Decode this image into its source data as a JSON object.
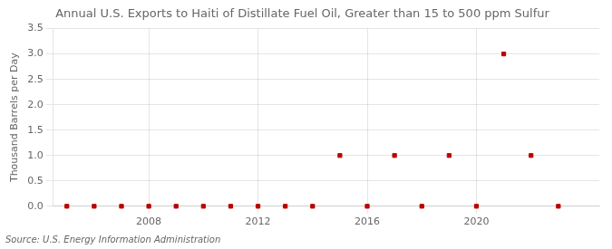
{
  "chart_data": {
    "type": "scatter",
    "title": "Annual U.S. Exports to Haiti of Distillate Fuel Oil, Greater than 15 to 500 ppm Sulfur",
    "ylabel": "Thousand Barrels per Day",
    "annotations": [
      "Source: U.S. Energy Information Administration"
    ],
    "x": [
      2005,
      2006,
      2007,
      2008,
      2009,
      2010,
      2011,
      2012,
      2013,
      2014,
      2015,
      2016,
      2017,
      2018,
      2019,
      2020,
      2021,
      2022,
      2023
    ],
    "values": [
      0.0,
      0.0,
      0.0,
      0.0,
      0.0,
      0.0,
      0.0,
      0.0,
      0.0,
      0.0,
      1.0,
      0.0,
      1.0,
      0.0,
      1.0,
      0.0,
      3.0,
      1.0,
      0.0
    ],
    "color": "#bb0000",
    "marker": "square",
    "xlim": [
      2004.5,
      2024.5
    ],
    "xticks": [
      2008,
      2012,
      2016,
      2020
    ],
    "ylim": [
      0.0,
      3.5
    ],
    "yticks": [
      {
        "value": 0.0,
        "label": "0.0"
      },
      0.5,
      {
        "value": 1.0,
        "label": "1.0"
      },
      1.5,
      {
        "value": 2.0,
        "label": "2.0"
      },
      2.5,
      {
        "value": 3.0,
        "label": "3.0"
      },
      3.5
    ],
    "grid": true
  }
}
